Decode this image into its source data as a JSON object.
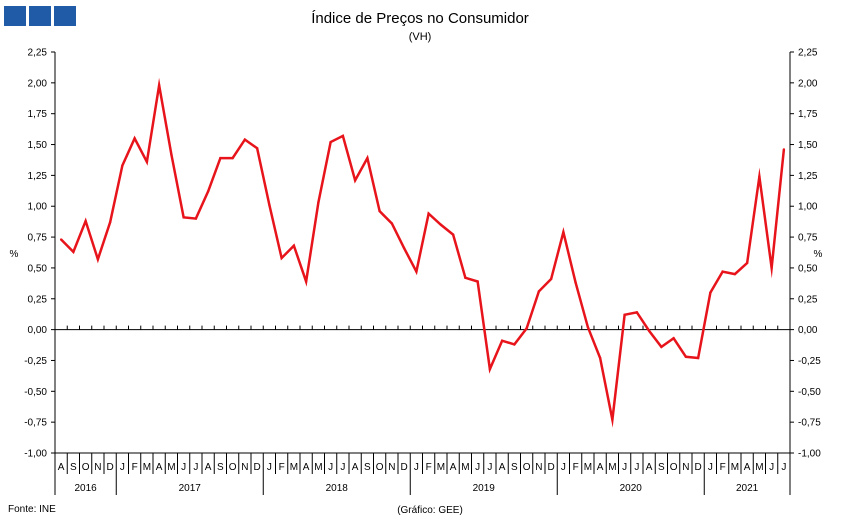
{
  "chart_data": {
    "type": "line",
    "title": "Índice de Preços no Consumidor",
    "subtitle": "(VH)",
    "ylabel_left": "%",
    "ylabel_right": "%",
    "ylim": [
      -1.0,
      2.25
    ],
    "y_ticks": [
      "2,25",
      "2,00",
      "1,75",
      "1,50",
      "1,25",
      "1,00",
      "0,75",
      "0,50",
      "0,25",
      "0,00",
      "-0,25",
      "-0,50",
      "-0,75",
      "-1,00"
    ],
    "y_tick_values": [
      2.25,
      2.0,
      1.75,
      1.5,
      1.25,
      1.0,
      0.75,
      0.5,
      0.25,
      0.0,
      -0.25,
      -0.5,
      -0.75,
      -1.0
    ],
    "grid": false,
    "months": [
      "A",
      "S",
      "O",
      "N",
      "D",
      "J",
      "F",
      "M",
      "A",
      "M",
      "J",
      "J",
      "A",
      "S",
      "O",
      "N",
      "D",
      "J",
      "F",
      "M",
      "A",
      "M",
      "J",
      "J",
      "A",
      "S",
      "O",
      "N",
      "D",
      "J",
      "F",
      "M",
      "A",
      "M",
      "J",
      "J",
      "A",
      "S",
      "O",
      "N",
      "D",
      "J",
      "F",
      "M",
      "A",
      "M",
      "J",
      "J",
      "A",
      "S",
      "O",
      "N",
      "D",
      "J",
      "F",
      "M",
      "A",
      "M",
      "J",
      "J"
    ],
    "years": [
      {
        "label": "2016",
        "start": 0,
        "count": 5
      },
      {
        "label": "2017",
        "start": 5,
        "count": 12
      },
      {
        "label": "2018",
        "start": 17,
        "count": 12
      },
      {
        "label": "2019",
        "start": 29,
        "count": 12
      },
      {
        "label": "2020",
        "start": 41,
        "count": 12
      },
      {
        "label": "2021",
        "start": 53,
        "count": 7
      }
    ],
    "series": [
      {
        "color": "#e8141b",
        "values": [
          0.73,
          0.63,
          0.88,
          0.57,
          0.87,
          1.33,
          1.55,
          1.36,
          1.98,
          1.42,
          0.91,
          0.9,
          1.12,
          1.39,
          1.39,
          1.54,
          1.47,
          1.01,
          0.58,
          0.68,
          0.39,
          1.03,
          1.52,
          1.57,
          1.21,
          1.39,
          0.96,
          0.86,
          0.66,
          0.47,
          0.94,
          0.85,
          0.77,
          0.42,
          0.39,
          -0.32,
          -0.09,
          -0.12,
          0.01,
          0.31,
          0.41,
          0.79,
          0.38,
          0.02,
          -0.23,
          -0.73,
          0.12,
          0.14,
          -0.01,
          -0.14,
          -0.07,
          -0.22,
          -0.23,
          0.3,
          0.47,
          0.45,
          0.54,
          1.24,
          0.5,
          1.46
        ]
      }
    ]
  },
  "footer": {
    "source": "Fonte: INE",
    "credit": "(Gráfico: GEE)"
  }
}
